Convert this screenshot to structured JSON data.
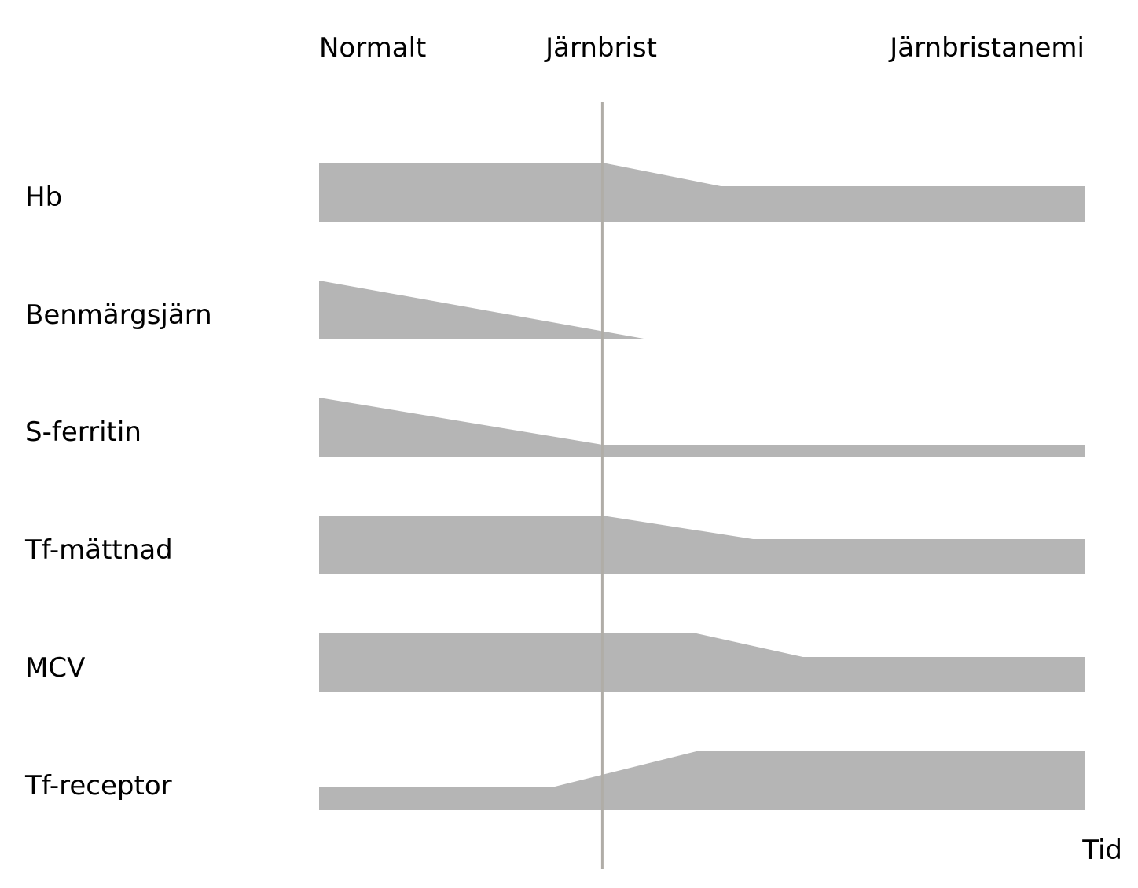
{
  "phases": [
    {
      "label": "Normalt"
    },
    {
      "label": "Järnbrist"
    },
    {
      "label": "Järnbristanemi"
    }
  ],
  "axis_label": "Tid",
  "colors": {
    "band": "#b5b5b5",
    "divider": "#b0ada7",
    "text": "#000000"
  },
  "chart_data": {
    "type": "area",
    "x_unit": "relative time",
    "x_range": [
      0,
      1
    ],
    "divider_x": 0.37,
    "rows": [
      {
        "label": "Hb",
        "profile": [
          [
            0,
            1.0
          ],
          [
            0.37,
            1.0
          ],
          [
            0.525,
            0.6
          ],
          [
            1,
            0.6
          ]
        ]
      },
      {
        "label": "Benmärgsjärn",
        "profile": [
          [
            0,
            1.0
          ],
          [
            0.43,
            0.0
          ]
        ]
      },
      {
        "label": "S-ferritin",
        "profile": [
          [
            0,
            1.0
          ],
          [
            0.37,
            0.2
          ],
          [
            1,
            0.2
          ]
        ]
      },
      {
        "label": "Tf-mättnad",
        "profile": [
          [
            0,
            1.0
          ],
          [
            0.37,
            1.0
          ],
          [
            0.567,
            0.6
          ],
          [
            1,
            0.6
          ]
        ]
      },
      {
        "label": "MCV",
        "profile": [
          [
            0,
            1.0
          ],
          [
            0.493,
            1.0
          ],
          [
            0.632,
            0.6
          ],
          [
            1,
            0.6
          ]
        ]
      },
      {
        "label": "Tf-receptor",
        "profile": [
          [
            0,
            0.4
          ],
          [
            0.308,
            0.4
          ],
          [
            0.493,
            1.0
          ],
          [
            1,
            1.0
          ]
        ]
      }
    ]
  }
}
